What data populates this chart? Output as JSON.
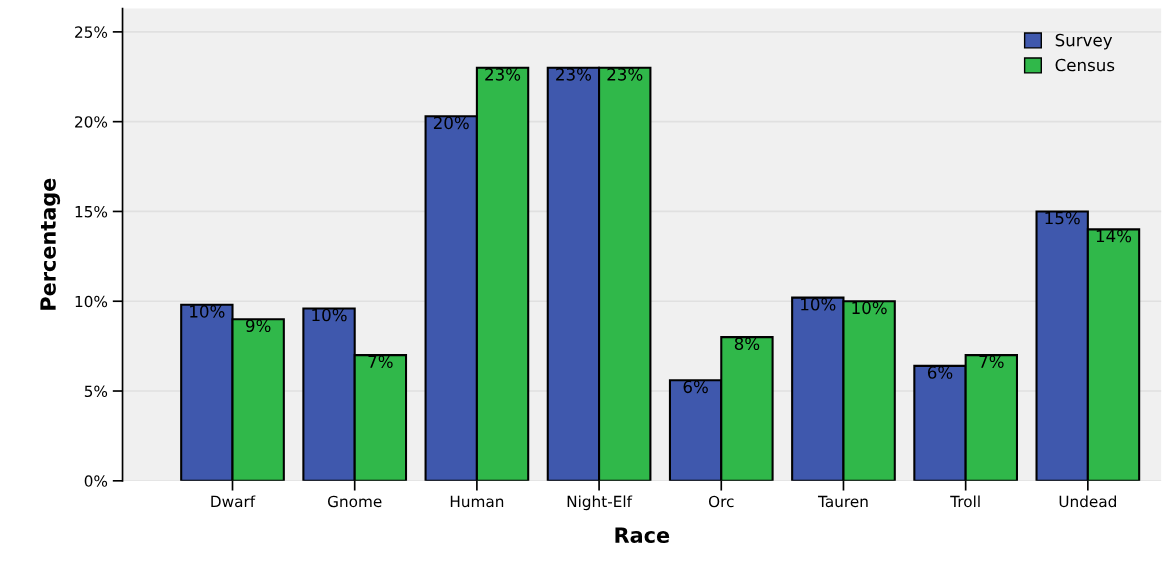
{
  "chart_data": {
    "type": "bar",
    "xlabel": "Race",
    "ylabel": "Percentage",
    "categories": [
      "Dwarf",
      "Gnome",
      "Human",
      "Night-Elf",
      "Orc",
      "Tauren",
      "Troll",
      "Undead"
    ],
    "series": [
      {
        "name": "Survey",
        "color": "#3f58ad",
        "values": [
          9.8,
          9.6,
          20.3,
          23,
          5.6,
          10.2,
          6.4,
          15.0
        ],
        "value_labels": [
          "10%",
          "10%",
          "20%",
          "23%",
          "6%",
          "10%",
          "6%",
          "15%"
        ]
      },
      {
        "name": "Census",
        "color": "#30b84a",
        "values": [
          9,
          7,
          23,
          23,
          8,
          10,
          7,
          14
        ],
        "value_labels": [
          "9%",
          "7%",
          "23%",
          "23%",
          "8%",
          "10%",
          "7%",
          "14%"
        ]
      }
    ],
    "ylim": [
      0,
      26.3
    ],
    "yticks": [
      {
        "value": 0,
        "label": "0%"
      },
      {
        "value": 5,
        "label": "5%"
      },
      {
        "value": 10,
        "label": "10%"
      },
      {
        "value": 15,
        "label": "15%"
      },
      {
        "value": 20,
        "label": "20%"
      },
      {
        "value": 25,
        "label": "25%"
      }
    ],
    "grid": "y",
    "legend": "top right"
  }
}
